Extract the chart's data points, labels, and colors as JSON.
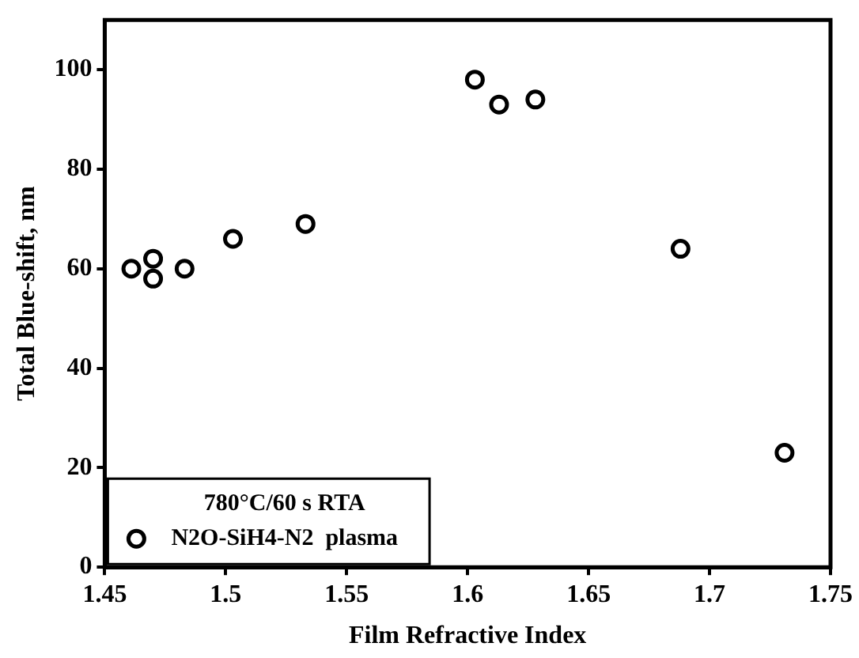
{
  "chart_data": {
    "type": "scatter",
    "xlabel": "Film Refractive Index",
    "ylabel": "Total Blue-shift, nm",
    "legend_title": "780°C/60 s RTA",
    "xlim": [
      1.45,
      1.75
    ],
    "xticks": [
      1.45,
      1.5,
      1.55,
      1.6,
      1.65,
      1.7,
      1.75
    ],
    "ylim": [
      0,
      110
    ],
    "yticks": [
      0,
      20,
      40,
      60,
      80,
      100
    ],
    "grid": false,
    "legend": "bottom left",
    "marker": "circle",
    "series": [
      {
        "name": "N2O-SiH4-N2  plasma",
        "color": "#000000",
        "x": [
          1.461,
          1.47,
          1.47,
          1.483,
          1.503,
          1.533,
          1.603,
          1.613,
          1.628,
          1.688,
          1.731
        ],
        "values": [
          60,
          62,
          58,
          60,
          66,
          69,
          98,
          93,
          94,
          64,
          23
        ]
      }
    ]
  }
}
